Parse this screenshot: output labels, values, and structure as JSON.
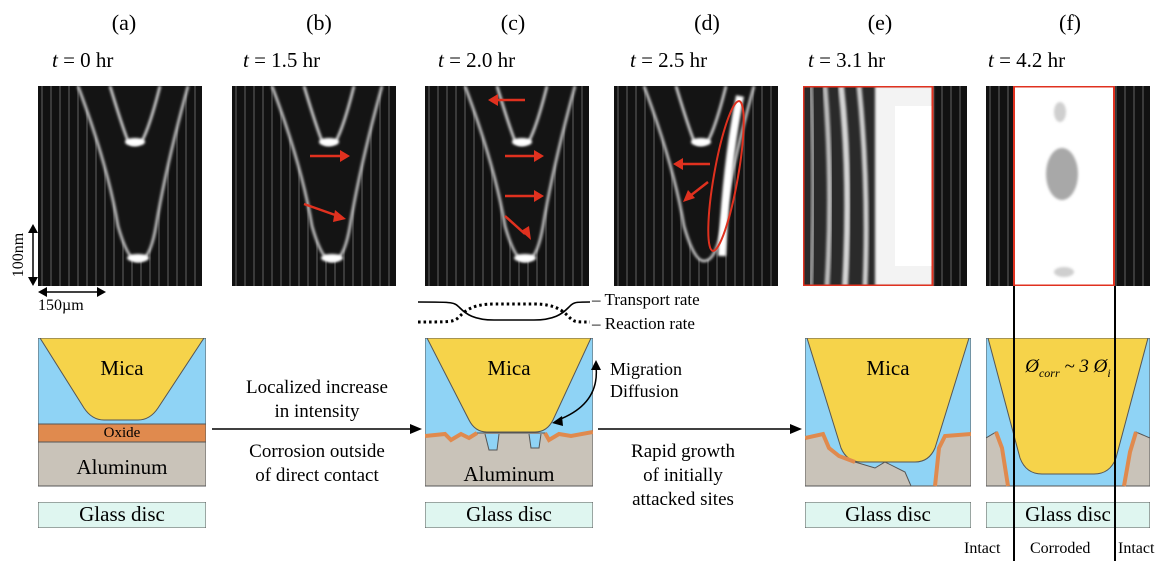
{
  "panels": [
    {
      "letter": "(a)",
      "time_var": "t",
      "time_val": "= 0 hr"
    },
    {
      "letter": "(b)",
      "time_var": "t",
      "time_val": "= 1.5 hr"
    },
    {
      "letter": "(c)",
      "time_var": "t",
      "time_val": "= 2.0 hr"
    },
    {
      "letter": "(d)",
      "time_var": "t",
      "time_val": "= 2.5 hr"
    },
    {
      "letter": "(e)",
      "time_var": "t",
      "time_val": "= 3.1 hr"
    },
    {
      "letter": "(f)",
      "time_var": "t",
      "time_val": "= 4.2 hr"
    }
  ],
  "scale": {
    "vertical": "100nm",
    "horizontal": "150µm"
  },
  "rates": {
    "transport": "Transport rate",
    "reaction": "Reaction rate"
  },
  "layers": {
    "mica": "Mica",
    "oxide": "Oxide",
    "aluminum": "Aluminum",
    "glass": "Glass disc"
  },
  "captions": {
    "step1_top_line1": "Localized increase",
    "step1_top_line2": "in intensity",
    "step1_bottom_line1": "Corrosion outside",
    "step1_bottom_line2": "of direct contact",
    "migration_line1": "Migration",
    "migration_line2": "Diffusion",
    "step2_line1": "Rapid growth",
    "step2_line2": "of initially",
    "step2_line3": "attacked sites",
    "diameter": "Ø",
    "diameter_sub": "corr",
    "diameter_mid": " ~ 3 Ø",
    "diameter_sub2": "i"
  },
  "bottom_labels": {
    "intact_left": "Intact",
    "corroded": "Corroded",
    "intact_right": "Intact"
  },
  "colors": {
    "mica": "#f6d34a",
    "fluid": "#8fd3f5",
    "oxide": "#e08a4e",
    "aluminum": "#c9c3b9",
    "glass": "#dff6f0",
    "arrow_red": "#e0311f"
  }
}
